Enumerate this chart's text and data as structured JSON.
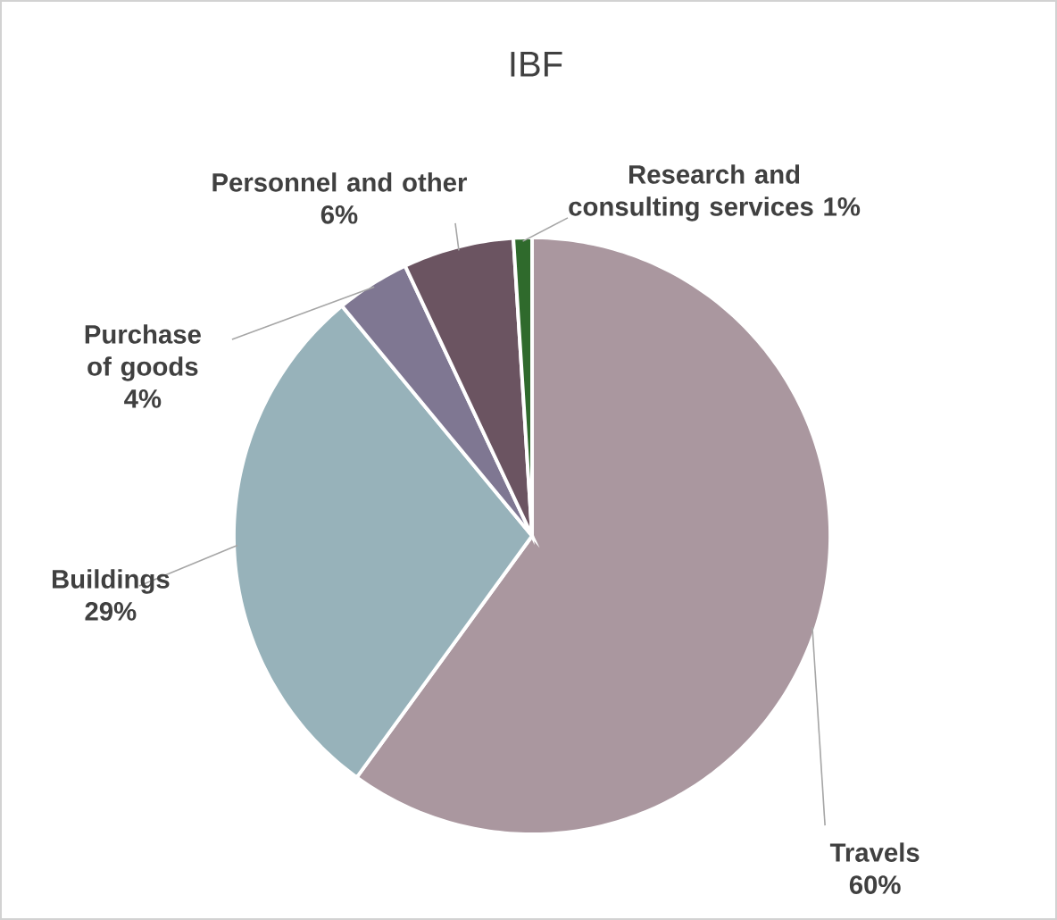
{
  "chart_data": {
    "type": "pie",
    "title": "IBF",
    "categories": [
      "Travels",
      "Buildings",
      "Purchase of goods",
      "Personnel and other",
      "Research and consulting services"
    ],
    "values": [
      60,
      29,
      4,
      6,
      1
    ],
    "value_labels": [
      "60%",
      "29%",
      "4%",
      "6%",
      "1%"
    ],
    "colors": [
      "#aa979f",
      "#97b2ba",
      "#7f7792",
      "#6b5461",
      "#2f6a2c"
    ]
  }
}
